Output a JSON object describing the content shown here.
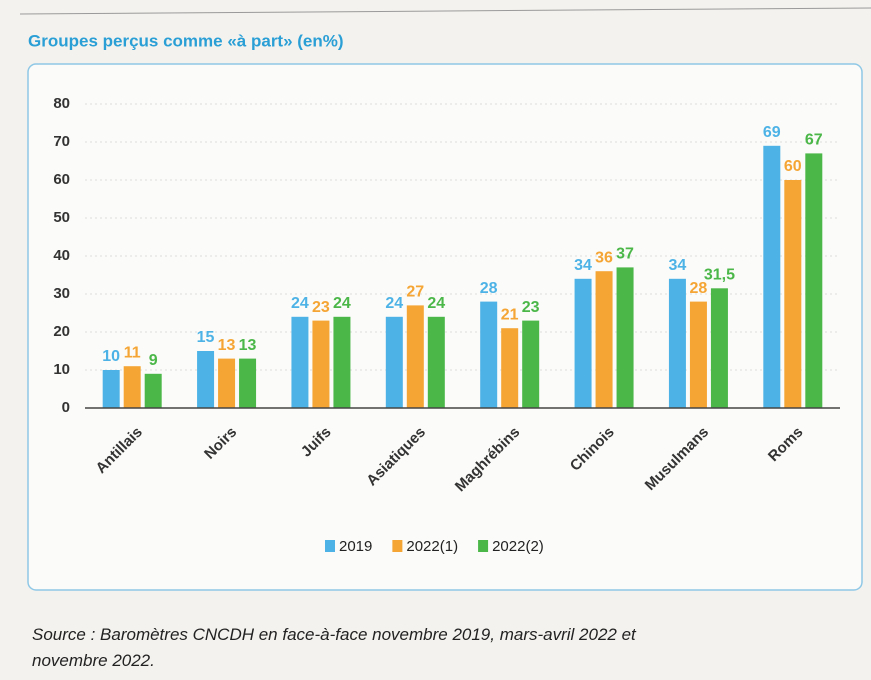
{
  "chart_data": {
    "type": "bar",
    "title": "Groupes perçus comme «à part» (en%)",
    "source": "Source : Baromètres CNCDH en face-à-face novembre 2019, mars-avril 2022 et novembre 2022.",
    "categories": [
      "Antillais",
      "Noirs",
      "Juifs",
      "Asiatiques",
      "Maghrébins",
      "Chinois",
      "Musulmans",
      "Roms"
    ],
    "series": [
      {
        "name": "2019",
        "color": "#4db3e6",
        "values": [
          10,
          15,
          24,
          24,
          28,
          34,
          34,
          69
        ]
      },
      {
        "name": "2022(1)",
        "color": "#f5a534",
        "values": [
          11,
          13,
          23,
          27,
          21,
          36,
          28,
          60
        ]
      },
      {
        "name": "2022(2)",
        "color": "#4bb749",
        "values": [
          9,
          13,
          24,
          24,
          23,
          37,
          31.5,
          67
        ],
        "value_labels": [
          "9",
          "13",
          "24",
          "24",
          "23",
          "37",
          "31,5",
          "67"
        ]
      }
    ],
    "ylim": [
      0,
      80
    ],
    "yticks": [
      0,
      10,
      20,
      30,
      40,
      50,
      60,
      70,
      80
    ],
    "grid": true
  }
}
